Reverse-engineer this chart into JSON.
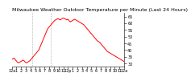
{
  "title": "Milwaukee Weather Outdoor Temperature per Minute (Last 24 Hours)",
  "line_color": "#ff0000",
  "bg_color": "#ffffff",
  "plot_bg_color": "#ffffff",
  "grid_color": "#cccccc",
  "axis_color": "#000000",
  "ylim": [
    28,
    68
  ],
  "yticks": [
    30,
    35,
    40,
    45,
    50,
    55,
    60,
    65
  ],
  "vline_positions": [
    0.18,
    0.35
  ],
  "x_points": [
    0,
    0.01,
    0.02,
    0.03,
    0.04,
    0.05,
    0.06,
    0.07,
    0.08,
    0.09,
    0.1,
    0.11,
    0.12,
    0.13,
    0.14,
    0.15,
    0.16,
    0.17,
    0.18,
    0.19,
    0.2,
    0.21,
    0.22,
    0.23,
    0.24,
    0.25,
    0.26,
    0.27,
    0.28,
    0.29,
    0.3,
    0.31,
    0.32,
    0.33,
    0.34,
    0.35,
    0.36,
    0.37,
    0.38,
    0.39,
    0.4,
    0.41,
    0.42,
    0.43,
    0.44,
    0.45,
    0.46,
    0.47,
    0.48,
    0.49,
    0.5,
    0.51,
    0.52,
    0.53,
    0.54,
    0.55,
    0.56,
    0.57,
    0.58,
    0.59,
    0.6,
    0.61,
    0.62,
    0.63,
    0.64,
    0.65,
    0.66,
    0.67,
    0.68,
    0.69,
    0.7,
    0.71,
    0.72,
    0.73,
    0.74,
    0.75,
    0.76,
    0.77,
    0.78,
    0.79,
    0.8,
    0.81,
    0.82,
    0.83,
    0.84,
    0.85,
    0.86,
    0.87,
    0.88,
    0.89,
    0.9,
    0.91,
    0.92,
    0.93,
    0.94,
    0.95,
    0.96,
    0.97,
    0.98,
    0.99,
    1.0
  ],
  "y_points": [
    33,
    33.5,
    34,
    33,
    32,
    31,
    30.5,
    31,
    31.5,
    32,
    32.5,
    32,
    31,
    30.5,
    31,
    31.5,
    32,
    33,
    34,
    35,
    36,
    37,
    38,
    39,
    40,
    42,
    44,
    46,
    48,
    50,
    52,
    54,
    56,
    57,
    58,
    59,
    60,
    61,
    62,
    62.5,
    63,
    63.5,
    63,
    62.5,
    63,
    63.5,
    64,
    63.5,
    63,
    62.5,
    63,
    62,
    61,
    61.5,
    62,
    62.5,
    63,
    62.5,
    62,
    61.5,
    61,
    60.5,
    60,
    59.5,
    59,
    58,
    57,
    56,
    55,
    54,
    53,
    52,
    51,
    50,
    49,
    48,
    47,
    46.5,
    46,
    45,
    44,
    43,
    42,
    41,
    40,
    39,
    38.5,
    38,
    37.5,
    37,
    36.5,
    36,
    35.5,
    35,
    34.5,
    34,
    33.5,
    33,
    32.5,
    32,
    31.5
  ],
  "title_fontsize": 4.5,
  "tick_fontsize": 3.5,
  "linewidth": 0.7,
  "x_tick_labels": [
    "12a",
    "1",
    "2",
    "3",
    "4",
    "5",
    "6",
    "7",
    "8",
    "9",
    "10",
    "11",
    "12p",
    "1",
    "2",
    "3",
    "4",
    "5",
    "6",
    "7",
    "8",
    "9",
    "10",
    "11",
    "12a"
  ],
  "x_tick_positions": [
    0.0,
    0.0417,
    0.0833,
    0.125,
    0.1667,
    0.2083,
    0.25,
    0.2917,
    0.3333,
    0.375,
    0.4167,
    0.4583,
    0.5,
    0.5417,
    0.5833,
    0.625,
    0.6667,
    0.7083,
    0.75,
    0.7917,
    0.8333,
    0.875,
    0.9167,
    0.9583,
    1.0
  ]
}
